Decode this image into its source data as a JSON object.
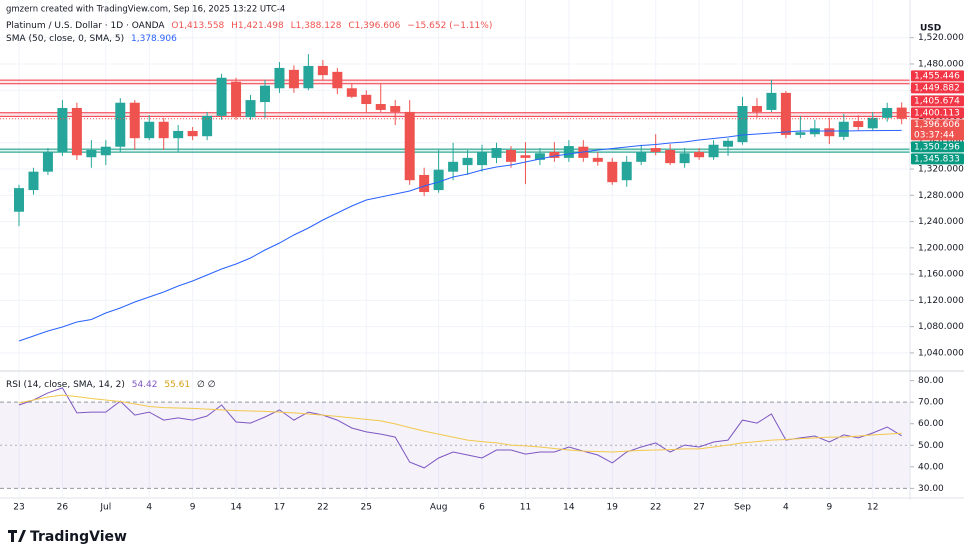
{
  "credit": "gmzern created with TradingView.com, Sep 16, 2025 13:22 UTC-4",
  "logo": "TradingView",
  "legend": {
    "symbol": "Platinum / U.S. Dollar · 1D · OANDA",
    "open": "O1,413.558",
    "high": "H1,421.498",
    "low": "L1,388.128",
    "close": "C1,396.606",
    "change": "−15.652 (−1.11%)"
  },
  "chart_data": [
    {
      "type": "candlestick",
      "currency": "USD",
      "categories": [
        "23",
        null,
        null,
        "26",
        null,
        null,
        "Jul",
        null,
        null,
        "4",
        null,
        null,
        "9",
        null,
        null,
        "14",
        null,
        null,
        "17",
        null,
        null,
        "22",
        null,
        null,
        "25",
        null,
        null,
        null,
        null,
        "Aug",
        null,
        null,
        "6",
        null,
        null,
        "11",
        null,
        null,
        "14",
        null,
        null,
        "19",
        null,
        null,
        "22",
        null,
        null,
        "27",
        null,
        null,
        "Sep",
        null,
        null,
        "4",
        null,
        null,
        "9",
        null,
        null,
        "12",
        null,
        null
      ],
      "open": [
        1255,
        1288,
        1316,
        1346,
        1413,
        1338,
        1341,
        1354,
        1421,
        1367,
        1392,
        1367,
        1378,
        1370,
        1401,
        1453,
        1399,
        1422,
        1443,
        1471,
        1443,
        1477,
        1468,
        1443,
        1433,
        1419,
        1416,
        1407,
        1311,
        1288,
        1316,
        1326,
        1326,
        1337,
        1349,
        1341,
        1334,
        1346,
        1337,
        1354,
        1337,
        1331,
        1303,
        1331,
        1352,
        1349,
        1329,
        1346,
        1338,
        1354,
        1361,
        1416,
        1410,
        1436,
        1372,
        1373,
        1382,
        1369,
        1393,
        1382,
        1398,
        1413.558
      ],
      "high": [
        1296,
        1322,
        1352,
        1425,
        1421,
        1364,
        1364,
        1428,
        1425,
        1402,
        1398,
        1387,
        1384,
        1407,
        1465,
        1459,
        1433,
        1456,
        1483,
        1478,
        1495,
        1486,
        1474,
        1450,
        1440,
        1450,
        1425,
        1425,
        1322,
        1349,
        1360,
        1349,
        1357,
        1360,
        1355,
        1361,
        1352,
        1361,
        1364,
        1364,
        1346,
        1337,
        1340,
        1357,
        1373,
        1358,
        1352,
        1352,
        1364,
        1367,
        1430,
        1428,
        1456,
        1439,
        1401,
        1395,
        1398,
        1404,
        1402,
        1407,
        1421,
        1421.498
      ],
      "low": [
        1233,
        1281,
        1311,
        1340,
        1334,
        1322,
        1326,
        1346,
        1349,
        1364,
        1349,
        1346,
        1364,
        1364,
        1395,
        1395,
        1395,
        1398,
        1436,
        1436,
        1440,
        1456,
        1434,
        1428,
        1407,
        1407,
        1387,
        1296,
        1279,
        1284,
        1303,
        1311,
        1316,
        1329,
        1322,
        1297,
        1326,
        1331,
        1331,
        1331,
        1325,
        1296,
        1293,
        1326,
        1341,
        1326,
        1322,
        1334,
        1334,
        1340,
        1357,
        1398,
        1407,
        1367,
        1367,
        1369,
        1358,
        1364,
        1379,
        1379,
        1392,
        1388.128
      ],
      "close": [
        1291,
        1316,
        1346,
        1413,
        1341,
        1349,
        1354,
        1421,
        1367,
        1392,
        1367,
        1378,
        1370,
        1401,
        1459,
        1399,
        1425,
        1447,
        1474,
        1443,
        1477,
        1463,
        1443,
        1430,
        1419,
        1410,
        1407,
        1303,
        1285,
        1319,
        1331,
        1337,
        1346,
        1352,
        1331,
        1337,
        1344,
        1337,
        1355,
        1337,
        1331,
        1300,
        1331,
        1346,
        1346,
        1329,
        1344,
        1338,
        1357,
        1363,
        1416,
        1407,
        1436,
        1372,
        1376,
        1382,
        1370,
        1392,
        1384,
        1398,
        1413,
        1396.606
      ],
      "up_color": "#26a69a",
      "down_color": "#ef5350",
      "ylim": [
        1014,
        1550
      ],
      "yticks": [
        {
          "value": 1520,
          "label": "1,520.000"
        },
        {
          "value": 1480,
          "label": "1,480.000"
        },
        {
          "value": 1440,
          "label": "1,440.000"
        },
        {
          "value": 1400,
          "label": "1,400.000"
        },
        {
          "value": 1360,
          "label": "1,360.000"
        },
        {
          "value": 1320,
          "label": "1,320.000"
        },
        {
          "value": 1280,
          "label": "1,280.000"
        },
        {
          "value": 1240,
          "label": "1,240.000"
        },
        {
          "value": 1200,
          "label": "1,200.000"
        },
        {
          "value": 1160,
          "label": "1,160.000"
        },
        {
          "value": 1120,
          "label": "1,120.000"
        },
        {
          "value": 1080,
          "label": "1,080.000"
        },
        {
          "value": 1040,
          "label": "1,040.000"
        }
      ],
      "grid": true,
      "sma": {
        "name": "SMA (50, close, 0, SMA, 5)",
        "value_label": "1,378.906",
        "color": "#2962ff",
        "values": [
          1058.1,
          1065.8,
          1073.4,
          1079.5,
          1087.1,
          1090.9,
          1100.8,
          1108.4,
          1117.5,
          1125.2,
          1132.8,
          1141.9,
          1149.5,
          1158.7,
          1167.8,
          1175.4,
          1184.5,
          1196.7,
          1207.4,
          1219.6,
          1230.2,
          1242.4,
          1253.1,
          1263.7,
          1272.9,
          1277.4,
          1282.0,
          1286.6,
          1294.2,
          1300.3,
          1307.9,
          1312.4,
          1318.5,
          1323.1,
          1326.1,
          1330.7,
          1335.3,
          1339.9,
          1342.9,
          1345.9,
          1349.0,
          1351.3,
          1353.6,
          1355.8,
          1357.4,
          1359.7,
          1361.2,
          1364.2,
          1366.5,
          1368.8,
          1371.8,
          1373.4,
          1374.9,
          1376.4,
          1377.9,
          1377.9,
          1377.9,
          1377.9,
          1378.2,
          1378.5,
          1378.7,
          1378.906
        ]
      },
      "zones": [
        {
          "values": [
            1455.446,
            1449.882
          ],
          "value_labels": [
            "1,455.446",
            "1,449.882"
          ],
          "color": "#f23645"
        },
        {
          "values": [
            1405.674,
            1400.113
          ],
          "value_labels": [
            "1,405.674",
            "1,400.113"
          ],
          "color": "#f23645"
        },
        {
          "values": [
            1350.296,
            1345.833
          ],
          "value_labels": [
            "1,350.296",
            "1,345.833"
          ],
          "color": "#089981"
        }
      ],
      "last_price_label": "1,396.606",
      "countdown": "03:37:44"
    },
    {
      "type": "line",
      "name": "RSI (14, close, SMA, 14, 2)",
      "extra": "∅ ∅",
      "series": [
        {
          "color": "#7e57c2",
          "value_label": "54.42",
          "values": [
            68.7,
            71.0,
            74.3,
            76.6,
            65.0,
            65.4,
            65.4,
            70.5,
            64.0,
            65.4,
            61.7,
            62.7,
            61.7,
            63.6,
            68.7,
            60.8,
            60.3,
            63.1,
            66.4,
            61.7,
            65.4,
            64.0,
            61.7,
            58.0,
            56.2,
            55.2,
            53.8,
            42.2,
            39.5,
            44.1,
            46.9,
            45.5,
            44.1,
            47.8,
            47.8,
            45.9,
            46.9,
            46.9,
            49.2,
            47.3,
            45.5,
            41.8,
            46.9,
            49.2,
            51.1,
            46.9,
            50.1,
            49.2,
            51.5,
            52.4,
            61.7,
            60.3,
            64.5,
            52.4,
            53.4,
            54.3,
            51.5,
            54.8,
            53.4,
            55.7,
            58.5,
            54.42
          ]
        },
        {
          "color": "#f2c94c",
          "value_label": "55.61",
          "values": [
            69.6,
            71.0,
            72.4,
            73.3,
            72.6,
            71.7,
            71.0,
            70.3,
            69.2,
            68.0,
            67.5,
            67.3,
            67.1,
            66.8,
            66.4,
            66.1,
            65.9,
            65.7,
            65.4,
            65.0,
            64.5,
            64.0,
            63.4,
            62.7,
            62.0,
            61.3,
            59.9,
            58.2,
            56.6,
            55.2,
            53.8,
            52.4,
            51.7,
            51.1,
            50.1,
            49.7,
            49.2,
            48.5,
            47.8,
            47.3,
            47.1,
            46.9,
            47.3,
            47.6,
            47.8,
            48.0,
            48.3,
            48.3,
            49.2,
            50.1,
            51.1,
            51.7,
            52.4,
            52.7,
            53.1,
            53.4,
            53.8,
            53.8,
            54.3,
            54.8,
            55.2,
            55.61
          ]
        }
      ],
      "ylim": [
        26,
        84
      ],
      "yticks": [
        {
          "value": 80,
          "label": "80.00"
        },
        {
          "value": 70,
          "label": "70.00"
        },
        {
          "value": 60,
          "label": "60.00"
        },
        {
          "value": 50,
          "label": "50.00"
        },
        {
          "value": 40,
          "label": "40.00"
        },
        {
          "value": 30,
          "label": "30.00"
        }
      ],
      "band": [
        70,
        30
      ],
      "midline": 50,
      "band_color": "#7e57c2"
    }
  ]
}
